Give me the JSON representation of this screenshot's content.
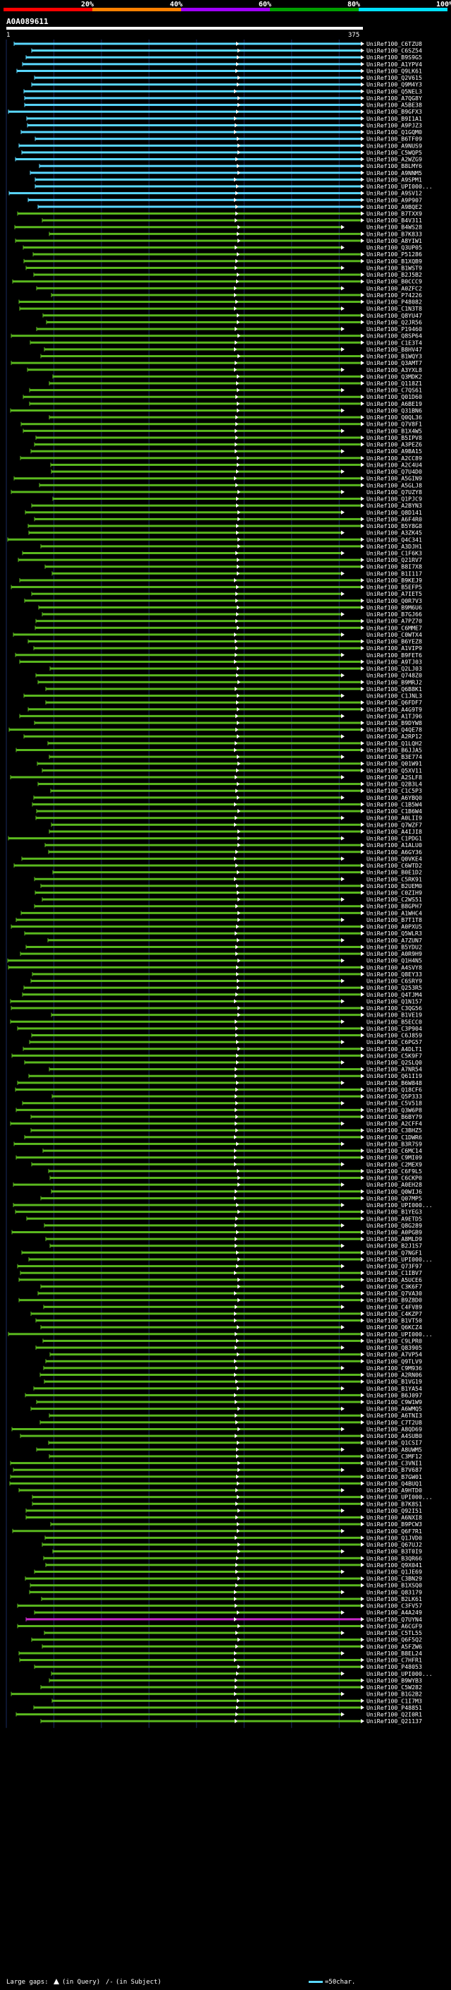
{
  "scale": {
    "ticks": [
      "20%",
      "40%",
      "60%",
      "80%",
      "100%"
    ],
    "bands": [
      "#ff0000",
      "#ff8000",
      "#a000ff",
      "#00a000",
      "#00e0ff"
    ]
  },
  "query": {
    "name": "A0A089611",
    "start": "1",
    "end": "375",
    "color": "#ffffff"
  },
  "legend": {
    "gaps_label": "Large gaps:",
    "in_query": "(in Query)",
    "in_subject": "(in Subject)",
    "scale_label": "=50char."
  },
  "colors": {
    "background": "#000000",
    "grid": "#1a2a60",
    "cyan": "#5ad8ff",
    "green": "#5ab81e",
    "magenta": "#c828c8",
    "white": "#ffffff"
  },
  "hits": [
    {
      "name": "UniRef100_C6TZU8",
      "color": "cyan"
    },
    {
      "name": "UniRef100_C6SZ54",
      "color": "cyan"
    },
    {
      "name": "UniRef100_B9S9G5",
      "color": "cyan"
    },
    {
      "name": "UniRef100_A1YPV4",
      "color": "cyan"
    },
    {
      "name": "UniRef100_Q9LK61",
      "color": "cyan"
    },
    {
      "name": "UniRef100_Q2V615",
      "color": "cyan"
    },
    {
      "name": "UniRef100_Q9M4Y3",
      "color": "cyan"
    },
    {
      "name": "UniRef100_Q5NEL3",
      "color": "cyan"
    },
    {
      "name": "UniRef100_A7QG8Y",
      "color": "cyan"
    },
    {
      "name": "UniRef100_A5BE38",
      "color": "cyan"
    },
    {
      "name": "UniRef100_B9GFX3",
      "color": "cyan"
    },
    {
      "name": "UniRef100_B9I1A1",
      "color": "cyan"
    },
    {
      "name": "UniRef100_A9PJZ3",
      "color": "cyan"
    },
    {
      "name": "UniRef100_Q1GQM0",
      "color": "cyan"
    },
    {
      "name": "UniRef100_B6TF09",
      "color": "cyan"
    },
    {
      "name": "UniRef100_A9NUS9",
      "color": "cyan"
    },
    {
      "name": "UniRef100_C5WQP5",
      "color": "cyan"
    },
    {
      "name": "UniRef100_A2WZG9",
      "color": "cyan"
    },
    {
      "name": "UniRef100_B8LMY6",
      "color": "cyan"
    },
    {
      "name": "UniRef100_A9NNM5",
      "color": "cyan"
    },
    {
      "name": "UniRef100_A9SPM1",
      "color": "cyan"
    },
    {
      "name": "UniRef100_UPI000...",
      "color": "cyan"
    },
    {
      "name": "UniRef100_A9SV12",
      "color": "cyan"
    },
    {
      "name": "UniRef100_A9P907",
      "color": "cyan"
    },
    {
      "name": "UniRef100_A9BQE2",
      "color": "cyan"
    },
    {
      "name": "UniRef100_B7TXX9",
      "color": "green"
    },
    {
      "name": "UniRef100_B4V311",
      "color": "green"
    },
    {
      "name": "UniRef100_B4WS28",
      "color": "green"
    },
    {
      "name": "UniRef100_B7K833",
      "color": "green"
    },
    {
      "name": "UniRef100_A8YIW1",
      "color": "green"
    },
    {
      "name": "UniRef100_Q3UP05",
      "color": "green"
    },
    {
      "name": "UniRef100_P51286",
      "color": "green"
    },
    {
      "name": "UniRef100_B1XQB9",
      "color": "green"
    },
    {
      "name": "UniRef100_B1WST9",
      "color": "green"
    },
    {
      "name": "UniRef100_B2J5B2",
      "color": "green"
    },
    {
      "name": "UniRef100_B0CCC9",
      "color": "green"
    },
    {
      "name": "UniRef100_A0ZFC2",
      "color": "green"
    },
    {
      "name": "UniRef100_P74226",
      "color": "green"
    },
    {
      "name": "UniRef100_P48082",
      "color": "green"
    },
    {
      "name": "UniRef100_C1N3T8",
      "color": "green"
    },
    {
      "name": "UniRef100_Q8YU47",
      "color": "green"
    },
    {
      "name": "UniRef100_Q2JR56",
      "color": "green"
    },
    {
      "name": "UniRef100_P19460",
      "color": "green"
    },
    {
      "name": "UniRef100_Q8SP64",
      "color": "green"
    },
    {
      "name": "UniRef100_C1E3T4",
      "color": "green"
    },
    {
      "name": "UniRef100_B8HV47",
      "color": "green"
    },
    {
      "name": "UniRef100_B1WQY3",
      "color": "green"
    },
    {
      "name": "UniRef100_Q3AMT7",
      "color": "green"
    },
    {
      "name": "UniRef100_A3YXL8",
      "color": "green"
    },
    {
      "name": "UniRef100_Q3MDK2",
      "color": "green"
    },
    {
      "name": "UniRef100_Q118Z1",
      "color": "green"
    },
    {
      "name": "UniRef100_C7QS61",
      "color": "green"
    },
    {
      "name": "UniRef100_Q01D60",
      "color": "green"
    },
    {
      "name": "UniRef100_A6BE19",
      "color": "green"
    },
    {
      "name": "UniRef100_Q31BN6",
      "color": "green"
    },
    {
      "name": "UniRef100_Q0QL36",
      "color": "green"
    },
    {
      "name": "UniRef100_Q7V8F1",
      "color": "green"
    },
    {
      "name": "UniRef100_B1X4W5",
      "color": "green"
    },
    {
      "name": "UniRef100_B5IPV8",
      "color": "green"
    },
    {
      "name": "UniRef100_A3PEZ6",
      "color": "green"
    },
    {
      "name": "UniRef100_A9BA15",
      "color": "green"
    },
    {
      "name": "UniRef100_A2CC89",
      "color": "green"
    },
    {
      "name": "UniRef100_A2C4U4",
      "color": "green"
    },
    {
      "name": "UniRef100_Q7U4D0",
      "color": "green"
    },
    {
      "name": "UniRef100_A5GIN9",
      "color": "green"
    },
    {
      "name": "UniRef100_A5GLJ8",
      "color": "green"
    },
    {
      "name": "UniRef100_Q7UZY8",
      "color": "green"
    },
    {
      "name": "UniRef100_Q1PJC9",
      "color": "green"
    },
    {
      "name": "UniRef100_A2BYN3",
      "color": "green"
    },
    {
      "name": "UniRef100_Q8D141",
      "color": "green"
    },
    {
      "name": "UniRef100_A6F4R0",
      "color": "green"
    },
    {
      "name": "UniRef100_B5Y8G8",
      "color": "green"
    },
    {
      "name": "UniRef100_A3ZK45",
      "color": "green"
    },
    {
      "name": "UniRef100_Q4C341",
      "color": "green"
    },
    {
      "name": "UniRef100_A3DJH1",
      "color": "green"
    },
    {
      "name": "UniRef100_C1F6K3",
      "color": "green"
    },
    {
      "name": "UniRef100_Q21RV7",
      "color": "green"
    },
    {
      "name": "UniRef100_B8I7X8",
      "color": "green"
    },
    {
      "name": "UniRef100_B1I117",
      "color": "green"
    },
    {
      "name": "UniRef100_B9KEJ9",
      "color": "green"
    },
    {
      "name": "UniRef100_B5EFP5",
      "color": "green"
    },
    {
      "name": "UniRef100_A7IET5",
      "color": "green"
    },
    {
      "name": "UniRef100_Q0R7V3",
      "color": "green"
    },
    {
      "name": "UniRef100_B9M6U6",
      "color": "green"
    },
    {
      "name": "UniRef100_B7GJ66",
      "color": "green"
    },
    {
      "name": "UniRef100_A7PZ70",
      "color": "green"
    },
    {
      "name": "UniRef100_C6MME7",
      "color": "green"
    },
    {
      "name": "UniRef100_C0WTX4",
      "color": "green"
    },
    {
      "name": "UniRef100_B6YEZ8",
      "color": "green"
    },
    {
      "name": "UniRef100_A1VIP9",
      "color": "green"
    },
    {
      "name": "UniRef100_B9FET6",
      "color": "green"
    },
    {
      "name": "UniRef100_A9TJ03",
      "color": "green"
    },
    {
      "name": "UniRef100_Q2LJ03",
      "color": "green"
    },
    {
      "name": "UniRef100_Q748Z0",
      "color": "green"
    },
    {
      "name": "UniRef100_B9MRJ2",
      "color": "green"
    },
    {
      "name": "UniRef100_Q6B8K1",
      "color": "green"
    },
    {
      "name": "UniRef100_C1JNL3",
      "color": "green"
    },
    {
      "name": "UniRef100_Q6FDF7",
      "color": "green"
    },
    {
      "name": "UniRef100_A4G9T9",
      "color": "green"
    },
    {
      "name": "UniRef100_A1TJ96",
      "color": "green"
    },
    {
      "name": "UniRef100_B9DYW8",
      "color": "green"
    },
    {
      "name": "UniRef100_Q4QE78",
      "color": "green"
    },
    {
      "name": "UniRef100_A2RP12",
      "color": "green"
    },
    {
      "name": "UniRef100_Q1LQH2",
      "color": "green"
    },
    {
      "name": "UniRef100_B6JJA5",
      "color": "green"
    },
    {
      "name": "UniRef100_B3E774",
      "color": "green"
    },
    {
      "name": "UniRef100_Q01W91",
      "color": "green"
    },
    {
      "name": "UniRef100_Q5XV11",
      "color": "green"
    },
    {
      "name": "UniRef100_A2SLF8",
      "color": "green"
    },
    {
      "name": "UniRef100_Q2B3L4",
      "color": "green"
    },
    {
      "name": "UniRef100_C1C5P3",
      "color": "green"
    },
    {
      "name": "UniRef100_A6YBQ0",
      "color": "green"
    },
    {
      "name": "UniRef100_C1B5W4",
      "color": "green"
    },
    {
      "name": "UniRef100_C1B6W4",
      "color": "green"
    },
    {
      "name": "UniRef100_A0LII9",
      "color": "green"
    },
    {
      "name": "UniRef100_Q7WZF7",
      "color": "green"
    },
    {
      "name": "UniRef100_A4IJI8",
      "color": "green"
    },
    {
      "name": "UniRef100_C1PDG1",
      "color": "green"
    },
    {
      "name": "UniRef100_A1ALU0",
      "color": "green"
    },
    {
      "name": "UniRef100_A6GY36",
      "color": "green"
    },
    {
      "name": "UniRef100_Q0VKE4",
      "color": "green"
    },
    {
      "name": "UniRef100_C6WTD2",
      "color": "green"
    },
    {
      "name": "UniRef100_B0E1D2",
      "color": "green"
    },
    {
      "name": "UniRef100_C5RK91",
      "color": "green"
    },
    {
      "name": "UniRef100_B2UEM0",
      "color": "green"
    },
    {
      "name": "UniRef100_C0ZIH9",
      "color": "green"
    },
    {
      "name": "UniRef100_C2WS51",
      "color": "green"
    },
    {
      "name": "UniRef100_B8GPH7",
      "color": "green"
    },
    {
      "name": "UniRef100_A1WHC4",
      "color": "green"
    },
    {
      "name": "UniRef100_B7T1T8",
      "color": "green"
    },
    {
      "name": "UniRef100_A0PXU5",
      "color": "green"
    },
    {
      "name": "UniRef100_Q5WLR3",
      "color": "green"
    },
    {
      "name": "UniRef100_A7ZUN7",
      "color": "green"
    },
    {
      "name": "UniRef100_B5YDU2",
      "color": "green"
    },
    {
      "name": "UniRef100_A0R9H9",
      "color": "green"
    },
    {
      "name": "UniRef100_Q1H4N5",
      "color": "green"
    },
    {
      "name": "UniRef100_A4SVY8",
      "color": "green"
    },
    {
      "name": "UniRef100_Q8EY33",
      "color": "green"
    },
    {
      "name": "UniRef100_C6SRY9",
      "color": "green"
    },
    {
      "name": "UniRef100_Q253R5",
      "color": "green"
    },
    {
      "name": "UniRef100_Q4TJM4",
      "color": "green"
    },
    {
      "name": "UniRef100_Q1N157",
      "color": "green"
    },
    {
      "name": "UniRef100_C3QG56",
      "color": "green"
    },
    {
      "name": "UniRef100_B1VE19",
      "color": "green"
    },
    {
      "name": "UniRef100_B5ECC0",
      "color": "green"
    },
    {
      "name": "UniRef100_C3P904",
      "color": "green"
    },
    {
      "name": "UniRef100_C6J859",
      "color": "green"
    },
    {
      "name": "UniRef100_C6PG57",
      "color": "green"
    },
    {
      "name": "UniRef100_A4DLT1",
      "color": "green"
    },
    {
      "name": "UniRef100_C5K9F7",
      "color": "green"
    },
    {
      "name": "UniRef100_Q2SLQ0",
      "color": "green"
    },
    {
      "name": "UniRef100_A7NR54",
      "color": "green"
    },
    {
      "name": "UniRef100_Q61I19",
      "color": "green"
    },
    {
      "name": "UniRef100_B6W848",
      "color": "green"
    },
    {
      "name": "UniRef100_Q18CF6",
      "color": "green"
    },
    {
      "name": "UniRef100_Q5P333",
      "color": "green"
    },
    {
      "name": "UniRef100_C5V518",
      "color": "green"
    },
    {
      "name": "UniRef100_Q3W6P8",
      "color": "green"
    },
    {
      "name": "UniRef100_B6BY79",
      "color": "green"
    },
    {
      "name": "UniRef100_A2CFF4",
      "color": "green"
    },
    {
      "name": "UniRef100_C3BHZ5",
      "color": "green"
    },
    {
      "name": "UniRef100_C1DWR6",
      "color": "green"
    },
    {
      "name": "UniRef100_B3R7S9",
      "color": "green"
    },
    {
      "name": "UniRef100_C6MC14",
      "color": "green"
    },
    {
      "name": "UniRef100_C9MI09",
      "color": "green"
    },
    {
      "name": "UniRef100_C2MEX9",
      "color": "green"
    },
    {
      "name": "UniRef100_C6F9L5",
      "color": "green"
    },
    {
      "name": "UniRef100_C6CKP0",
      "color": "green"
    },
    {
      "name": "UniRef100_A0EH28",
      "color": "green"
    },
    {
      "name": "UniRef100_Q0WIJ6",
      "color": "green"
    },
    {
      "name": "UniRef100_Q07MP5",
      "color": "green"
    },
    {
      "name": "UniRef100_UPI000...",
      "color": "green"
    },
    {
      "name": "UniRef100_B1YEG3",
      "color": "green"
    },
    {
      "name": "UniRef100_A9ETD5",
      "color": "green"
    },
    {
      "name": "UniRef100_Q8G289",
      "color": "green"
    },
    {
      "name": "UniRef100_A0PGB9",
      "color": "green"
    },
    {
      "name": "UniRef100_A8MLD9",
      "color": "green"
    },
    {
      "name": "UniRef100_B2J1S7",
      "color": "green"
    },
    {
      "name": "UniRef100_Q7NGF1",
      "color": "green"
    },
    {
      "name": "UniRef100_UPI000...",
      "color": "green"
    },
    {
      "name": "UniRef100_Q73F97",
      "color": "green"
    },
    {
      "name": "UniRef100_C1IBV7",
      "color": "green"
    },
    {
      "name": "UniRef100_A5UCE6",
      "color": "green"
    },
    {
      "name": "UniRef100_C3K6F7",
      "color": "green"
    },
    {
      "name": "UniRef100_Q7VA30",
      "color": "green"
    },
    {
      "name": "UniRef100_B9Z8D0",
      "color": "green"
    },
    {
      "name": "UniRef100_C4FV89",
      "color": "green"
    },
    {
      "name": "UniRef100_C4KZP7",
      "color": "green"
    },
    {
      "name": "UniRef100_B1VT50",
      "color": "green"
    },
    {
      "name": "UniRef100_Q6KCZ4",
      "color": "green"
    },
    {
      "name": "UniRef100_UPI000...",
      "color": "green"
    },
    {
      "name": "UniRef100_C9LPR0",
      "color": "green"
    },
    {
      "name": "UniRef100_Q83905",
      "color": "green"
    },
    {
      "name": "UniRef100_A7VP54",
      "color": "green"
    },
    {
      "name": "UniRef100_Q9TLV9",
      "color": "green"
    },
    {
      "name": "UniRef100_C9M936",
      "color": "green"
    },
    {
      "name": "UniRef100_A2RN06",
      "color": "green"
    },
    {
      "name": "UniRef100_B1VG19",
      "color": "green"
    },
    {
      "name": "UniRef100_B1YA54",
      "color": "green"
    },
    {
      "name": "UniRef100_B6J097",
      "color": "green"
    },
    {
      "name": "UniRef100_C9W1W9",
      "color": "green"
    },
    {
      "name": "UniRef100_A6WMQ5",
      "color": "green"
    },
    {
      "name": "UniRef100_A6TNI3",
      "color": "green"
    },
    {
      "name": "UniRef100_C7T2U8",
      "color": "green"
    },
    {
      "name": "UniRef100_A8QD69",
      "color": "green"
    },
    {
      "name": "UniRef100_A4SUB0",
      "color": "green"
    },
    {
      "name": "UniRef100_Q1CSI7",
      "color": "green"
    },
    {
      "name": "UniRef100_A8UWM5",
      "color": "green"
    },
    {
      "name": "UniRef100_C3MF12",
      "color": "green"
    },
    {
      "name": "UniRef100_C3VNI1",
      "color": "green"
    },
    {
      "name": "UniRef100_B7V687",
      "color": "green"
    },
    {
      "name": "UniRef100_B7GW01",
      "color": "green"
    },
    {
      "name": "UniRef100_Q4BUQ1",
      "color": "green"
    },
    {
      "name": "UniRef100_A9HTD0",
      "color": "green"
    },
    {
      "name": "UniRef100_UPI000...",
      "color": "green"
    },
    {
      "name": "UniRef100_B7K8S1",
      "color": "green"
    },
    {
      "name": "UniRef100_Q92I51",
      "color": "green"
    },
    {
      "name": "UniRef100_A6NXI8",
      "color": "green"
    },
    {
      "name": "UniRef100_B9PCW3",
      "color": "green"
    },
    {
      "name": "UniRef100_Q6F7R1",
      "color": "green"
    },
    {
      "name": "UniRef100_Q1JVD0",
      "color": "green"
    },
    {
      "name": "UniRef100_Q67UJ2",
      "color": "green"
    },
    {
      "name": "UniRef100_B3T0I9",
      "color": "green"
    },
    {
      "name": "UniRef100_B3QR66",
      "color": "green"
    },
    {
      "name": "UniRef100_Q9X041",
      "color": "green"
    },
    {
      "name": "UniRef100_Q1JE69",
      "color": "green"
    },
    {
      "name": "UniRef100_C3BN29",
      "color": "green"
    },
    {
      "name": "UniRef100_B1XSQ0",
      "color": "green"
    },
    {
      "name": "UniRef100_Q83179",
      "color": "green"
    },
    {
      "name": "UniRef100_B2LK61",
      "color": "green"
    },
    {
      "name": "UniRef100_C3FV57",
      "color": "green"
    },
    {
      "name": "UniRef100_A4A249",
      "color": "green"
    },
    {
      "name": "UniRef100_Q7UYN4",
      "color": "magenta"
    },
    {
      "name": "UniRef100_A6CGF9",
      "color": "green"
    },
    {
      "name": "UniRef100_C5TL55",
      "color": "green"
    },
    {
      "name": "UniRef100_Q6F5Q2",
      "color": "green"
    },
    {
      "name": "UniRef100_A5FZW6",
      "color": "green"
    },
    {
      "name": "UniRef100_B8EL24",
      "color": "green"
    },
    {
      "name": "UniRef100_C7HFR1",
      "color": "green"
    },
    {
      "name": "UniRef100_P48053",
      "color": "green"
    },
    {
      "name": "UniRef100_UPI000...",
      "color": "green"
    },
    {
      "name": "UniRef100_B9WYB3",
      "color": "green"
    },
    {
      "name": "UniRef100_C5W282",
      "color": "green"
    },
    {
      "name": "UniRef100_B1G2B2",
      "color": "green"
    },
    {
      "name": "UniRef100_C1I7M3",
      "color": "green"
    },
    {
      "name": "UniRef100_P48851",
      "color": "green"
    },
    {
      "name": "UniRef100_Q2I0R1",
      "color": "green"
    },
    {
      "name": "UniRef100_Q21137",
      "color": "green"
    }
  ]
}
